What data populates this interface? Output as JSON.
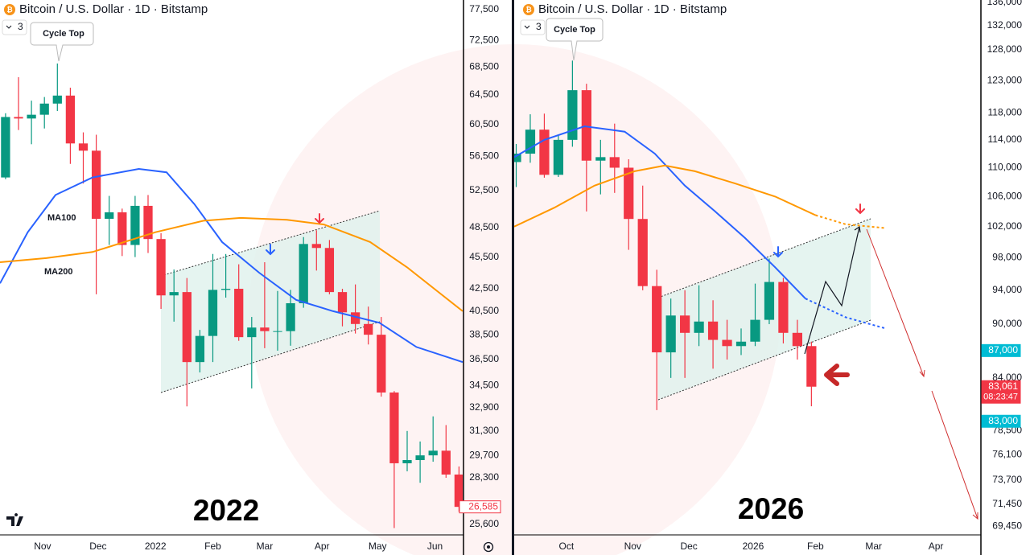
{
  "chart_data": [
    {
      "type": "candlestick",
      "title": "Bitcoin / U.S. Dollar · 1D · Bitstamp",
      "interval_badge": "3",
      "callout": "Cycle Top",
      "year_label": "2022",
      "log_scale": true,
      "grid": false,
      "up_color": "#089981",
      "down_color": "#f23645",
      "xlim": [
        0,
        250
      ],
      "xticks": [
        {
          "value": 23,
          "label": "Nov"
        },
        {
          "value": 53,
          "label": "Dec"
        },
        {
          "value": 84,
          "label": "2022"
        },
        {
          "value": 115,
          "label": "Feb"
        },
        {
          "value": 143,
          "label": "Mar"
        },
        {
          "value": 174,
          "label": "Apr"
        },
        {
          "value": 204,
          "label": "May"
        },
        {
          "value": 235,
          "label": "Jun"
        }
      ],
      "ylim": [
        25030,
        79100
      ],
      "yticks": [
        {
          "value": 77500,
          "label": "77,500"
        },
        {
          "value": 72500,
          "label": "72,500"
        },
        {
          "value": 68500,
          "label": "68,500"
        },
        {
          "value": 64500,
          "label": "64,500"
        },
        {
          "value": 60500,
          "label": "60,500"
        },
        {
          "value": 56500,
          "label": "56,500"
        },
        {
          "value": 52500,
          "label": "52,500"
        },
        {
          "value": 48500,
          "label": "48,500"
        },
        {
          "value": 45500,
          "label": "45,500"
        },
        {
          "value": 42500,
          "label": "42,500"
        },
        {
          "value": 40500,
          "label": "40,500"
        },
        {
          "value": 38500,
          "label": "38,500"
        },
        {
          "value": 36500,
          "label": "36,500"
        },
        {
          "value": 34500,
          "label": "34,500"
        },
        {
          "value": 32900,
          "label": "32,900"
        },
        {
          "value": 31300,
          "label": "31,300"
        },
        {
          "value": 29700,
          "label": "29,700"
        },
        {
          "value": 28300,
          "label": "28,300"
        },
        {
          "value": 25600,
          "label": "25,600"
        }
      ],
      "candles": {
        "x": [
          3,
          10,
          17,
          24,
          31,
          38,
          45,
          52,
          59,
          66,
          73,
          80,
          87,
          94,
          101,
          108,
          115,
          122,
          129,
          136,
          143,
          150,
          157,
          164,
          171,
          178,
          185,
          192,
          199,
          206,
          213,
          220,
          227,
          234,
          241,
          248
        ],
        "open": [
          54000,
          61500,
          61300,
          61800,
          63300,
          64400,
          58100,
          57200,
          49400,
          50100,
          46700,
          50800,
          47300,
          41900,
          42200,
          36300,
          38400,
          42400,
          42500,
          38300,
          39100,
          38800,
          38800,
          41200,
          46800,
          46400,
          42200,
          40400,
          39400,
          38500,
          34000,
          29200,
          29400,
          29700,
          30000,
          28500
        ],
        "high": [
          62000,
          67000,
          63700,
          64200,
          69000,
          65500,
          59500,
          59200,
          51900,
          50500,
          51900,
          52000,
          47900,
          44300,
          43500,
          38900,
          45800,
          45800,
          44800,
          40000,
          45000,
          42300,
          42400,
          47500,
          48200,
          47200,
          42500,
          42900,
          40900,
          40000,
          34100,
          31300,
          30600,
          32300,
          31700,
          29000
        ],
        "low": [
          53800,
          59800,
          58000,
          60000,
          62300,
          55600,
          53300,
          42000,
          46700,
          45600,
          45500,
          45900,
          40700,
          39600,
          33000,
          35500,
          36300,
          41700,
          38000,
          34300,
          37400,
          37200,
          37600,
          40800,
          44200,
          42000,
          39200,
          38600,
          37700,
          33700,
          25400,
          28700,
          28000,
          29300,
          28300,
          26300
        ],
        "close": [
          61500,
          61300,
          61800,
          63300,
          64400,
          58100,
          57200,
          49400,
          50100,
          46700,
          50800,
          47300,
          41900,
          42200,
          36300,
          38400,
          42400,
          42500,
          38300,
          39100,
          38800,
          38800,
          41200,
          46800,
          46400,
          42200,
          40400,
          39400,
          38500,
          34000,
          29200,
          29400,
          29700,
          30000,
          28500,
          26585
        ]
      },
      "series": [
        {
          "name": "MA100",
          "color": "#2962ff",
          "x": [
            0,
            15,
            30,
            50,
            75,
            90,
            105,
            120,
            140,
            160,
            180,
            205,
            225,
            250
          ],
          "values": [
            43000,
            48000,
            52000,
            54000,
            55000,
            54600,
            51000,
            47000,
            44000,
            41500,
            40500,
            39500,
            37500,
            36300
          ]
        },
        {
          "name": "MA200",
          "color": "#ff9800",
          "x": [
            0,
            25,
            50,
            84,
            110,
            130,
            155,
            175,
            200,
            220,
            250
          ],
          "values": [
            45000,
            45400,
            46000,
            48000,
            49200,
            49500,
            49300,
            48800,
            47000,
            44500,
            40500
          ]
        }
      ],
      "price_tags": [
        {
          "value": 26585,
          "label": "26,585",
          "color": "#f23645"
        }
      ]
    },
    {
      "type": "candlestick",
      "title": "Bitcoin / U.S. Dollar · 1D · Bitstamp",
      "interval_badge": "3",
      "callout": "Cycle Top",
      "year_label": "2026",
      "countdown": "08:23:47",
      "log_scale": true,
      "grid": false,
      "up_color": "#089981",
      "down_color": "#f23645",
      "xlim": [
        0,
        232
      ],
      "xticks": [
        {
          "value": 26,
          "label": "Oct"
        },
        {
          "value": 59,
          "label": "Nov"
        },
        {
          "value": 87,
          "label": "Dec"
        },
        {
          "value": 119,
          "label": "2026"
        },
        {
          "value": 150,
          "label": "Feb"
        },
        {
          "value": 179,
          "label": "Mar"
        },
        {
          "value": 210,
          "label": "Apr"
        }
      ],
      "ylim": [
        68680,
        136400
      ],
      "yticks": [
        {
          "value": 136000,
          "label": "136,000"
        },
        {
          "value": 132000,
          "label": "132,000"
        },
        {
          "value": 128000,
          "label": "128,000"
        },
        {
          "value": 123000,
          "label": "123,000"
        },
        {
          "value": 118000,
          "label": "118,000"
        },
        {
          "value": 114000,
          "label": "114,000"
        },
        {
          "value": 110000,
          "label": "110,000"
        },
        {
          "value": 106000,
          "label": "106,000"
        },
        {
          "value": 102000,
          "label": "102,000"
        },
        {
          "value": 98000,
          "label": "98,000"
        },
        {
          "value": 94000,
          "label": "94,000"
        },
        {
          "value": 90000,
          "label": "90,000"
        },
        {
          "value": 84000,
          "label": "84,000"
        },
        {
          "value": 78500,
          "label": "78,500"
        },
        {
          "value": 76100,
          "label": "76,100"
        },
        {
          "value": 73700,
          "label": "73,700"
        },
        {
          "value": 71450,
          "label": "71,450"
        },
        {
          "value": 69450,
          "label": "69,450"
        }
      ],
      "candles": {
        "x": [
          1,
          8,
          15,
          22,
          29,
          36,
          43,
          50,
          57,
          64,
          71,
          78,
          85,
          92,
          99,
          106,
          113,
          120,
          127,
          134,
          141,
          148
        ],
        "open": [
          110800,
          112000,
          115500,
          109000,
          114000,
          121500,
          111000,
          111500,
          110000,
          103000,
          94500,
          86800,
          91000,
          89000,
          90300,
          88200,
          87500,
          88000,
          90500,
          95000,
          89000,
          87500
        ],
        "high": [
          113400,
          117800,
          117900,
          114800,
          126200,
          122500,
          114000,
          116400,
          111200,
          107500,
          96500,
          93000,
          94000,
          94600,
          92800,
          90500,
          89500,
          94800,
          97900,
          95500,
          90500,
          88000
        ],
        "low": [
          107300,
          110700,
          108600,
          108700,
          113000,
          104000,
          106300,
          106500,
          99000,
          94000,
          80600,
          84000,
          84000,
          87500,
          85000,
          86000,
          86500,
          87500,
          90000,
          87800,
          86000,
          81000
        ],
        "close": [
          112000,
          115500,
          109000,
          114000,
          121500,
          111000,
          111500,
          110000,
          103000,
          94500,
          86800,
          91000,
          89000,
          90300,
          88200,
          87500,
          88000,
          90500,
          95000,
          89000,
          87500,
          83061
        ]
      },
      "series": [
        {
          "color": "#2962ff",
          "x": [
            0,
            15,
            35,
            55,
            70,
            85,
            100,
            115,
            130,
            145
          ],
          "values": [
            111500,
            114000,
            116000,
            115200,
            112000,
            107500,
            104000,
            100500,
            96800,
            93000
          ]
        },
        {
          "color": "#2962ff",
          "dashed": true,
          "x": [
            145,
            165,
            185
          ],
          "values": [
            93000,
            90800,
            89500
          ]
        },
        {
          "color": "#ff9800",
          "x": [
            0,
            20,
            40,
            60,
            75,
            90,
            110,
            130,
            150
          ],
          "values": [
            102000,
            104500,
            107500,
            109500,
            110300,
            109500,
            107800,
            106000,
            103500
          ]
        },
        {
          "color": "#ff9800",
          "dashed": true,
          "x": [
            150,
            165,
            185
          ],
          "values": [
            103500,
            102300,
            101800
          ]
        }
      ],
      "price_tags": [
        {
          "value": 87000,
          "label": "87,000",
          "color": "#00bcd4"
        },
        {
          "value": 83061,
          "label": "83,061",
          "color": "#f23645"
        },
        {
          "value": 83000,
          "label": "83,000",
          "color": "#00bcd4"
        }
      ]
    }
  ]
}
